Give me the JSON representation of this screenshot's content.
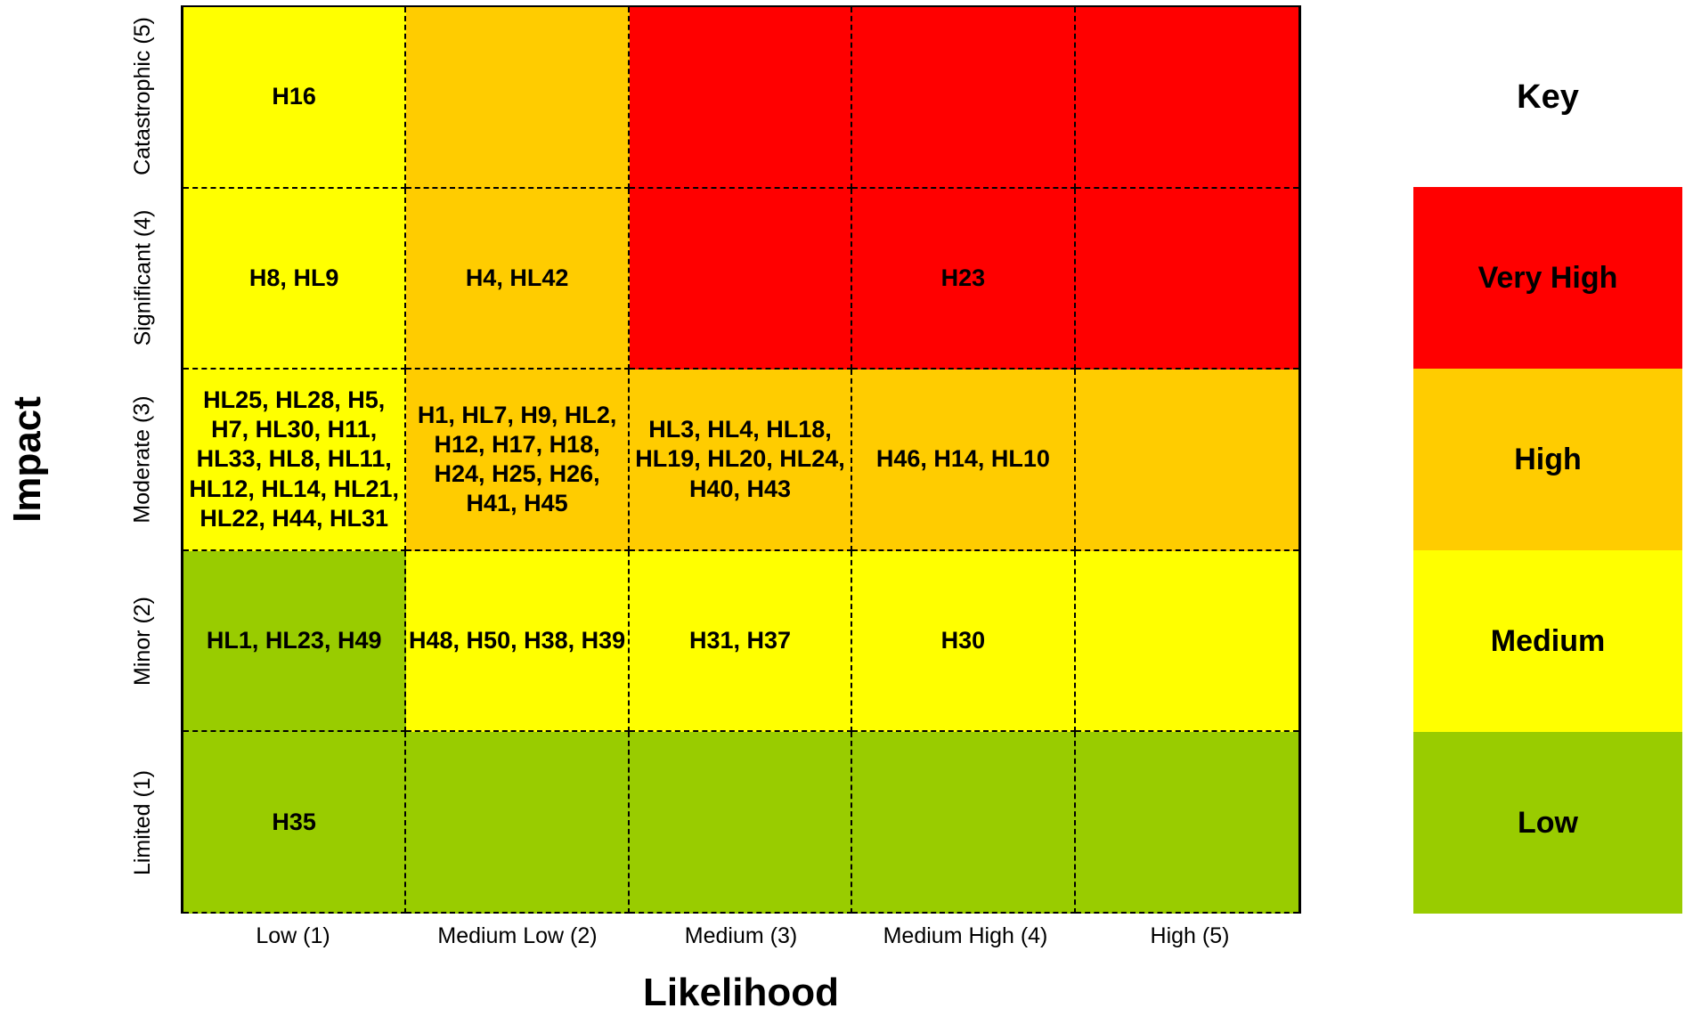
{
  "chart_data": {
    "type": "heatmap",
    "xlabel": "Likelihood",
    "ylabel": "Impact",
    "x_categories": [
      "Low (1)",
      "Medium Low (2)",
      "Medium (3)",
      "Medium High (4)",
      "High (5)"
    ],
    "y_categories": [
      "Catastrophic (5)",
      "Significant (4)",
      "Moderate (3)",
      "Minor (2)",
      "Limited (1)"
    ],
    "cells": [
      [
        "H16",
        "",
        "",
        "",
        ""
      ],
      [
        "H8, HL9",
        "H4, HL42",
        "",
        "H23",
        ""
      ],
      [
        "HL25, HL28, H5, H7, HL30, H11, HL33, HL8, HL11, HL12, HL14, HL21, HL22, H44, HL31",
        "H1, HL7, H9, HL2, H12, H17, H18, H24, H25, H26, H41, H45",
        "HL3, HL4, HL18, HL19, HL20, HL24, H40, H43",
        "H46, H14, HL10",
        ""
      ],
      [
        "HL1, HL23, H49",
        "H48, H50, H38, H39",
        "H31, H37",
        "H30",
        ""
      ],
      [
        "H35",
        "",
        "",
        "",
        ""
      ]
    ],
    "risk_levels": [
      [
        "medium",
        "high",
        "very-high",
        "very-high",
        "very-high"
      ],
      [
        "medium",
        "high",
        "very-high",
        "very-high",
        "very-high"
      ],
      [
        "medium",
        "high",
        "high",
        "high",
        "high"
      ],
      [
        "low",
        "medium",
        "medium",
        "medium",
        "medium"
      ],
      [
        "low",
        "low",
        "low",
        "low",
        "low"
      ]
    ],
    "key": {
      "title": "Key",
      "items": [
        {
          "level": "very-high",
          "label": "Very High",
          "color": "#ff0000"
        },
        {
          "level": "high",
          "label": "High",
          "color": "#ffcc00"
        },
        {
          "level": "medium",
          "label": "Medium",
          "color": "#ffff00"
        },
        {
          "level": "low",
          "label": "Low",
          "color": "#99cc00"
        }
      ]
    }
  }
}
